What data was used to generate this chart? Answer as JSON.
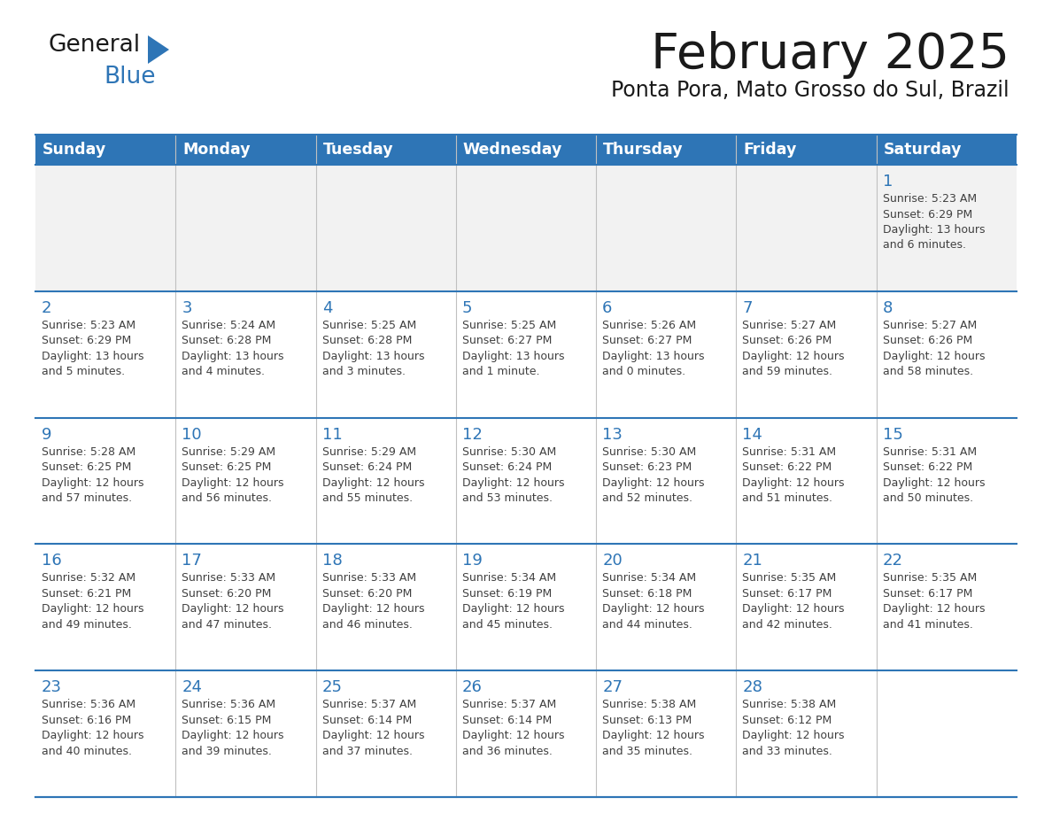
{
  "title": "February 2025",
  "subtitle": "Ponta Pora, Mato Grosso do Sul, Brazil",
  "header_bg_color": "#2e75b6",
  "header_text_color": "#ffffff",
  "cell_bg_color": "#ffffff",
  "row1_bg_color": "#f2f2f2",
  "cell_border_color": "#2e75b6",
  "day_number_color": "#2e75b6",
  "info_text_color": "#404040",
  "days_of_week": [
    "Sunday",
    "Monday",
    "Tuesday",
    "Wednesday",
    "Thursday",
    "Friday",
    "Saturday"
  ],
  "logo_general_color": "#1a1a1a",
  "logo_blue_color": "#2e75b6",
  "calendar_data": [
    [
      null,
      null,
      null,
      null,
      null,
      null,
      {
        "day": 1,
        "sunrise": "5:23 AM",
        "sunset": "6:29 PM",
        "daylight_hours": 13,
        "daylight_minutes": 6
      }
    ],
    [
      {
        "day": 2,
        "sunrise": "5:23 AM",
        "sunset": "6:29 PM",
        "daylight_hours": 13,
        "daylight_minutes": 5
      },
      {
        "day": 3,
        "sunrise": "5:24 AM",
        "sunset": "6:28 PM",
        "daylight_hours": 13,
        "daylight_minutes": 4
      },
      {
        "day": 4,
        "sunrise": "5:25 AM",
        "sunset": "6:28 PM",
        "daylight_hours": 13,
        "daylight_minutes": 3
      },
      {
        "day": 5,
        "sunrise": "5:25 AM",
        "sunset": "6:27 PM",
        "daylight_hours": 13,
        "daylight_minutes": 1
      },
      {
        "day": 6,
        "sunrise": "5:26 AM",
        "sunset": "6:27 PM",
        "daylight_hours": 13,
        "daylight_minutes": 0
      },
      {
        "day": 7,
        "sunrise": "5:27 AM",
        "sunset": "6:26 PM",
        "daylight_hours": 12,
        "daylight_minutes": 59
      },
      {
        "day": 8,
        "sunrise": "5:27 AM",
        "sunset": "6:26 PM",
        "daylight_hours": 12,
        "daylight_minutes": 58
      }
    ],
    [
      {
        "day": 9,
        "sunrise": "5:28 AM",
        "sunset": "6:25 PM",
        "daylight_hours": 12,
        "daylight_minutes": 57
      },
      {
        "day": 10,
        "sunrise": "5:29 AM",
        "sunset": "6:25 PM",
        "daylight_hours": 12,
        "daylight_minutes": 56
      },
      {
        "day": 11,
        "sunrise": "5:29 AM",
        "sunset": "6:24 PM",
        "daylight_hours": 12,
        "daylight_minutes": 55
      },
      {
        "day": 12,
        "sunrise": "5:30 AM",
        "sunset": "6:24 PM",
        "daylight_hours": 12,
        "daylight_minutes": 53
      },
      {
        "day": 13,
        "sunrise": "5:30 AM",
        "sunset": "6:23 PM",
        "daylight_hours": 12,
        "daylight_minutes": 52
      },
      {
        "day": 14,
        "sunrise": "5:31 AM",
        "sunset": "6:22 PM",
        "daylight_hours": 12,
        "daylight_minutes": 51
      },
      {
        "day": 15,
        "sunrise": "5:31 AM",
        "sunset": "6:22 PM",
        "daylight_hours": 12,
        "daylight_minutes": 50
      }
    ],
    [
      {
        "day": 16,
        "sunrise": "5:32 AM",
        "sunset": "6:21 PM",
        "daylight_hours": 12,
        "daylight_minutes": 49
      },
      {
        "day": 17,
        "sunrise": "5:33 AM",
        "sunset": "6:20 PM",
        "daylight_hours": 12,
        "daylight_minutes": 47
      },
      {
        "day": 18,
        "sunrise": "5:33 AM",
        "sunset": "6:20 PM",
        "daylight_hours": 12,
        "daylight_minutes": 46
      },
      {
        "day": 19,
        "sunrise": "5:34 AM",
        "sunset": "6:19 PM",
        "daylight_hours": 12,
        "daylight_minutes": 45
      },
      {
        "day": 20,
        "sunrise": "5:34 AM",
        "sunset": "6:18 PM",
        "daylight_hours": 12,
        "daylight_minutes": 44
      },
      {
        "day": 21,
        "sunrise": "5:35 AM",
        "sunset": "6:17 PM",
        "daylight_hours": 12,
        "daylight_minutes": 42
      },
      {
        "day": 22,
        "sunrise": "5:35 AM",
        "sunset": "6:17 PM",
        "daylight_hours": 12,
        "daylight_minutes": 41
      }
    ],
    [
      {
        "day": 23,
        "sunrise": "5:36 AM",
        "sunset": "6:16 PM",
        "daylight_hours": 12,
        "daylight_minutes": 40
      },
      {
        "day": 24,
        "sunrise": "5:36 AM",
        "sunset": "6:15 PM",
        "daylight_hours": 12,
        "daylight_minutes": 39
      },
      {
        "day": 25,
        "sunrise": "5:37 AM",
        "sunset": "6:14 PM",
        "daylight_hours": 12,
        "daylight_minutes": 37
      },
      {
        "day": 26,
        "sunrise": "5:37 AM",
        "sunset": "6:14 PM",
        "daylight_hours": 12,
        "daylight_minutes": 36
      },
      {
        "day": 27,
        "sunrise": "5:38 AM",
        "sunset": "6:13 PM",
        "daylight_hours": 12,
        "daylight_minutes": 35
      },
      {
        "day": 28,
        "sunrise": "5:38 AM",
        "sunset": "6:12 PM",
        "daylight_hours": 12,
        "daylight_minutes": 33
      },
      null
    ]
  ]
}
